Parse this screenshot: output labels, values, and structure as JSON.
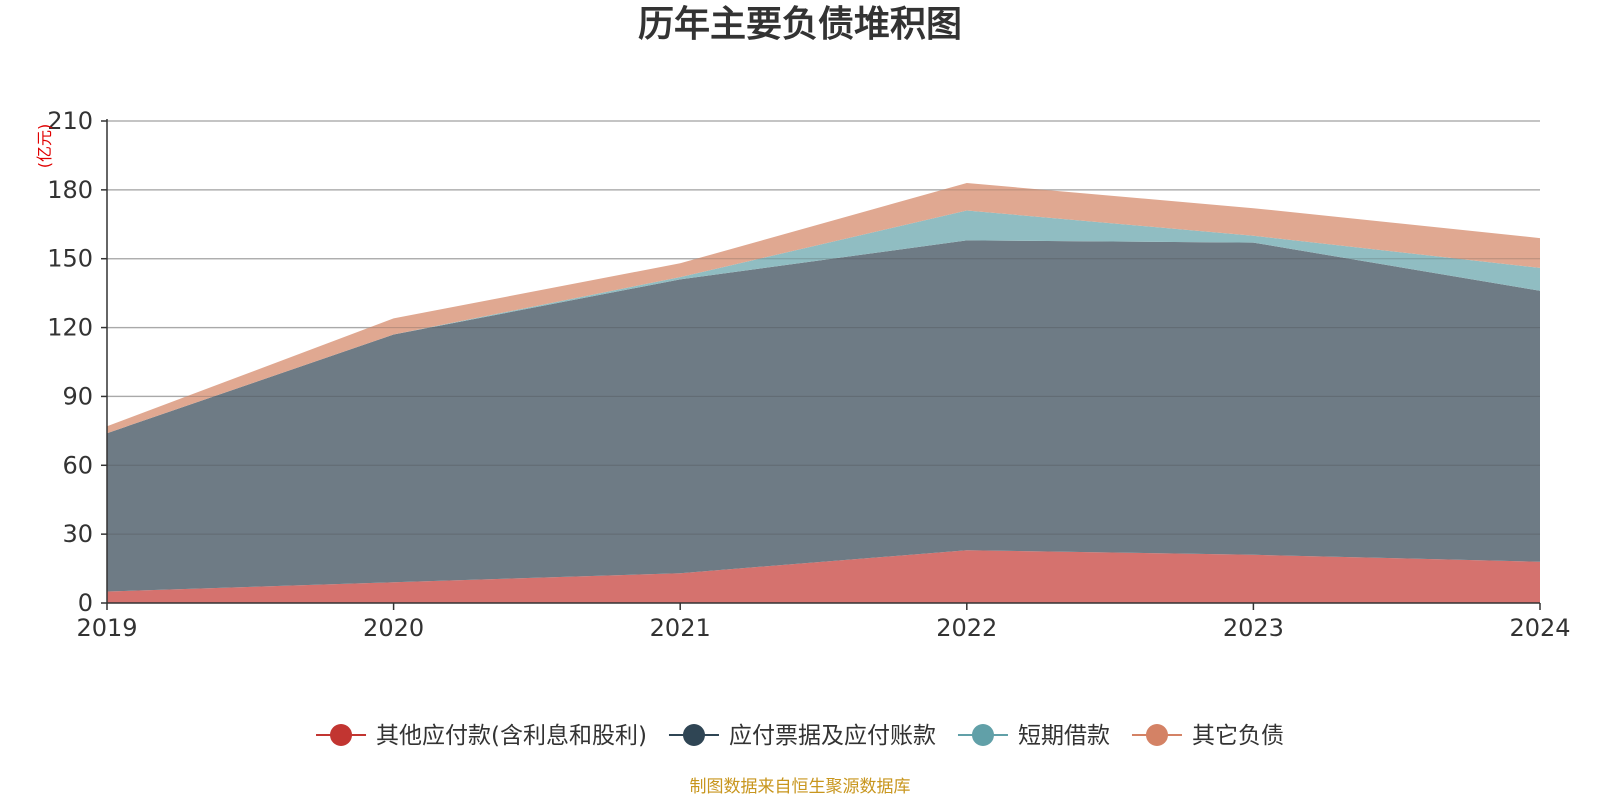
{
  "chart_data": {
    "type": "area",
    "title": "历年主要负债堆积图",
    "unit_label": "(亿元)",
    "x": [
      "2019",
      "2020",
      "2021",
      "2022",
      "2023",
      "2024"
    ],
    "y_ticks": [
      "0",
      "30",
      "60",
      "90",
      "120",
      "150",
      "180",
      "210"
    ],
    "ylim": [
      0,
      210
    ],
    "stacked": true,
    "grid": true,
    "legend_position": "bottom",
    "series": [
      {
        "name": "其他应付款(含利息和股利)",
        "values": [
          5,
          9,
          13,
          23,
          21,
          18
        ],
        "color": "#c23531",
        "fill": "#d5726e"
      },
      {
        "name": "应付票据及应付账款",
        "values": [
          69,
          108,
          128,
          135,
          136,
          118
        ],
        "color": "#2f4554",
        "fill": "#6e7b85"
      },
      {
        "name": "短期借款",
        "values": [
          0,
          0,
          1,
          13,
          3,
          10
        ],
        "color": "#61a0a8",
        "fill": "#90bdc2"
      },
      {
        "name": "其它负债",
        "values": [
          3,
          7,
          6,
          12,
          12,
          13
        ],
        "color": "#d48265",
        "fill": "#e0a891"
      }
    ]
  },
  "source_note": "制图数据来自恒生聚源数据库",
  "colors": {
    "axis": "#333333",
    "grid": "#c8c8c8",
    "unit": "#e00000",
    "source": "#c8961e",
    "title": "#333333"
  }
}
